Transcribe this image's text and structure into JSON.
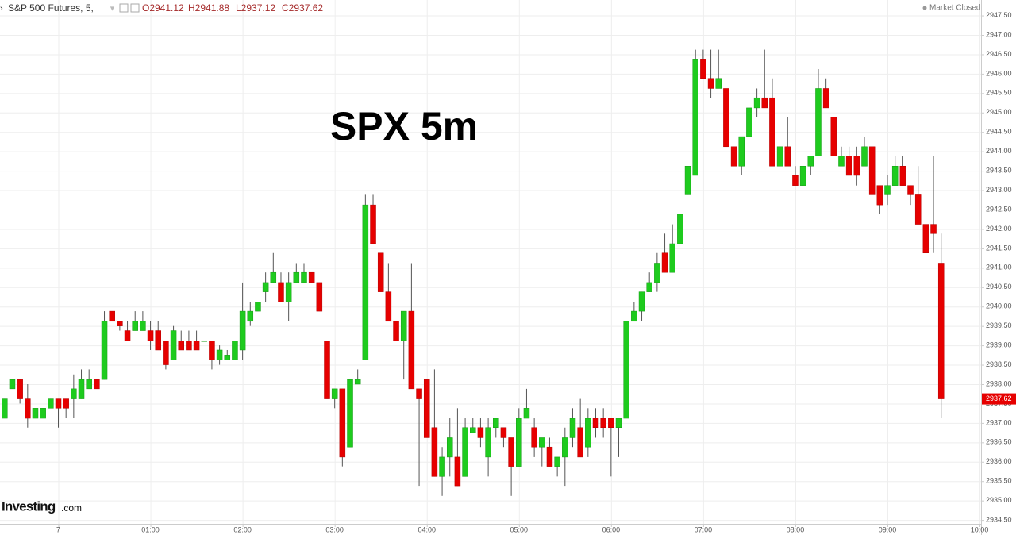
{
  "header": {
    "instrument": "S&P 500 Futures, 5,",
    "ohlc": [
      "O2941.12",
      "H2941.88",
      "L2937.12",
      "C2937.62"
    ],
    "status": "Market Closed"
  },
  "logo": {
    "brand": "Investing",
    "suffix": ".com"
  },
  "chart_data": {
    "type": "candlestick",
    "annotation": "SPX 5m",
    "up_color": "#1ecb1e",
    "down_color": "#e60000",
    "grid": true,
    "x": [
      -35,
      -30,
      -25,
      -20,
      -15,
      -10,
      -5,
      0,
      5,
      10,
      15,
      20,
      25,
      30,
      35,
      40,
      45,
      50,
      55,
      60,
      65,
      70,
      75,
      80,
      85,
      90,
      95,
      100,
      105,
      110,
      115,
      120,
      125,
      130,
      135,
      140,
      145,
      150,
      155,
      160,
      165,
      170,
      175,
      180,
      185,
      190,
      195,
      200,
      205,
      210,
      215,
      220,
      225,
      230,
      235,
      240,
      245,
      250,
      255,
      260,
      265,
      270,
      275,
      280,
      285,
      290,
      295,
      300,
      305,
      310,
      315,
      320,
      325,
      330,
      335,
      340,
      345,
      350,
      355,
      360,
      365,
      370,
      375,
      380,
      385,
      390,
      395,
      400,
      405,
      410,
      415,
      420,
      425,
      430,
      435,
      440,
      445,
      450,
      455,
      460,
      465,
      470,
      475,
      480,
      485,
      490,
      495,
      500,
      505,
      510,
      515,
      520,
      525,
      530,
      535,
      540,
      545,
      550,
      555,
      560,
      565,
      570,
      575
    ],
    "open": [
      2937.12,
      2937.88,
      2938.12,
      2937.62,
      2937.12,
      2937.12,
      2937.38,
      2937.62,
      2937.62,
      2937.62,
      2937.62,
      2937.88,
      2938.12,
      2938.12,
      2939.88,
      2939.62,
      2939.38,
      2939.38,
      2939.38,
      2939.38,
      2939.38,
      2939.12,
      2938.62,
      2939.12,
      2939.12,
      2939.12,
      2939.12,
      2939.12,
      2938.62,
      2938.62,
      2938.62,
      2938.88,
      2939.62,
      2939.88,
      2940.38,
      2940.62,
      2940.62,
      2940.12,
      2940.62,
      2940.62,
      2940.88,
      2940.62,
      2939.12,
      2937.62,
      2937.88,
      2936.38,
      2938.0,
      2938.62,
      2942.62,
      2941.38,
      2940.38,
      2939.62,
      2939.12,
      2939.88,
      2937.88,
      2938.12,
      2936.88,
      2935.62,
      2936.12,
      2936.12,
      2935.62,
      2936.75,
      2936.88,
      2936.12,
      2936.88,
      2936.88,
      2936.62,
      2935.88,
      2937.12,
      2936.88,
      2936.38,
      2936.38,
      2935.88,
      2936.12,
      2936.62,
      2936.88,
      2936.38,
      2937.12,
      2937.12,
      2937.12,
      2936.88,
      2937.12,
      2939.62,
      2939.88,
      2940.38,
      2940.62,
      2941.38,
      2940.88,
      2941.62,
      2942.88,
      2943.38,
      2946.38,
      2945.88,
      2945.62,
      2945.62,
      2944.12,
      2943.62,
      2944.38,
      2945.12,
      2945.38,
      2945.38,
      2943.62,
      2944.12,
      2943.38,
      2943.12,
      2943.62,
      2943.88,
      2945.62,
      2944.88,
      2943.62,
      2943.88,
      2943.88,
      2943.62,
      2944.12,
      2943.12,
      2942.88,
      2943.12,
      2943.62,
      2943.12,
      2942.88,
      2942.12,
      2942.12,
      2941.12
    ],
    "high": [
      2937.62,
      2938.12,
      2938.12,
      2938.0,
      2937.38,
      2937.38,
      2937.62,
      2937.62,
      2937.62,
      2938.25,
      2938.38,
      2938.38,
      2938.12,
      2939.88,
      2939.88,
      2939.62,
      2939.62,
      2939.88,
      2939.88,
      2939.62,
      2939.62,
      2939.12,
      2939.5,
      2939.38,
      2939.38,
      2939.38,
      2939.12,
      2939.12,
      2939.0,
      2938.88,
      2939.12,
      2940.62,
      2940.12,
      2940.12,
      2940.88,
      2941.38,
      2940.88,
      2940.88,
      2941.12,
      2941.12,
      2940.88,
      2940.62,
      2939.12,
      2937.88,
      2937.88,
      2938.12,
      2938.38,
      2942.88,
      2942.88,
      2941.38,
      2941.12,
      2939.62,
      2939.88,
      2941.12,
      2937.88,
      2938.12,
      2938.38,
      2936.38,
      2937.12,
      2937.38,
      2937.12,
      2937.12,
      2937.12,
      2937.12,
      2937.12,
      2936.88,
      2936.62,
      2937.38,
      2937.88,
      2937.12,
      2936.62,
      2936.62,
      2936.12,
      2936.88,
      2937.38,
      2937.62,
      2937.38,
      2937.38,
      2937.38,
      2937.12,
      2937.12,
      2939.62,
      2940.12,
      2940.38,
      2940.88,
      2941.38,
      2941.88,
      2942.12,
      2942.38,
      2943.62,
      2946.62,
      2946.62,
      2946.62,
      2946.62,
      2945.62,
      2944.12,
      2944.38,
      2945.12,
      2945.62,
      2946.62,
      2945.88,
      2944.12,
      2944.88,
      2943.62,
      2943.62,
      2943.88,
      2946.12,
      2945.88,
      2944.88,
      2944.12,
      2944.12,
      2944.12,
      2944.38,
      2944.12,
      2943.12,
      2943.38,
      2943.88,
      2943.88,
      2943.12,
      2943.62,
      2942.12,
      2943.88,
      2941.88
    ],
    "low": [
      2937.12,
      2937.88,
      2937.5,
      2936.88,
      2937.12,
      2937.12,
      2937.38,
      2936.88,
      2937.12,
      2937.12,
      2937.62,
      2937.88,
      2937.88,
      2938.12,
      2939.62,
      2939.38,
      2939.12,
      2939.38,
      2939.38,
      2938.88,
      2938.88,
      2938.38,
      2938.62,
      2938.88,
      2938.88,
      2938.88,
      2939.12,
      2938.38,
      2938.5,
      2938.62,
      2938.62,
      2938.62,
      2939.5,
      2939.88,
      2940.12,
      2940.62,
      2940.12,
      2939.62,
      2940.62,
      2940.62,
      2940.62,
      2939.88,
      2937.62,
      2937.38,
      2935.88,
      2936.38,
      2938.0,
      2938.62,
      2941.62,
      2940.38,
      2939.62,
      2939.12,
      2938.12,
      2937.88,
      2935.38,
      2936.62,
      2935.62,
      2935.12,
      2935.62,
      2935.38,
      2935.62,
      2936.75,
      2936.38,
      2935.62,
      2936.62,
      2936.38,
      2935.12,
      2935.88,
      2937.12,
      2936.12,
      2935.88,
      2935.88,
      2935.62,
      2935.38,
      2936.38,
      2936.12,
      2936.12,
      2936.62,
      2936.62,
      2935.62,
      2936.12,
      2937.12,
      2939.62,
      2939.62,
      2940.38,
      2940.38,
      2940.88,
      2940.88,
      2941.62,
      2942.88,
      2943.38,
      2945.88,
      2945.38,
      2945.62,
      2944.12,
      2943.62,
      2943.38,
      2944.38,
      2944.88,
      2945.12,
      2943.62,
      2943.62,
      2943.62,
      2943.12,
      2943.12,
      2943.38,
      2943.88,
      2945.12,
      2943.88,
      2943.62,
      2943.38,
      2943.12,
      2943.62,
      2942.88,
      2942.38,
      2942.62,
      2943.12,
      2943.12,
      2942.62,
      2942.12,
      2941.38,
      2941.38,
      2937.12
    ],
    "close": [
      2937.62,
      2938.12,
      2937.62,
      2937.12,
      2937.38,
      2937.38,
      2937.62,
      2937.38,
      2937.38,
      2937.88,
      2938.12,
      2938.12,
      2937.88,
      2939.62,
      2939.62,
      2939.5,
      2939.12,
      2939.62,
      2939.62,
      2939.12,
      2938.88,
      2938.5,
      2939.38,
      2938.88,
      2938.88,
      2938.88,
      2939.12,
      2938.62,
      2938.88,
      2938.75,
      2939.12,
      2939.88,
      2939.88,
      2940.12,
      2940.62,
      2940.88,
      2940.12,
      2940.62,
      2940.88,
      2940.88,
      2940.62,
      2939.88,
      2937.62,
      2937.88,
      2936.12,
      2938.12,
      2938.12,
      2942.62,
      2941.62,
      2940.38,
      2939.62,
      2939.12,
      2939.88,
      2937.88,
      2937.62,
      2936.62,
      2935.62,
      2936.12,
      2936.62,
      2935.38,
      2936.88,
      2936.88,
      2936.62,
      2936.88,
      2937.12,
      2936.62,
      2935.88,
      2937.12,
      2937.38,
      2936.38,
      2936.62,
      2935.88,
      2936.12,
      2936.62,
      2937.12,
      2936.12,
      2937.12,
      2936.88,
      2936.88,
      2936.88,
      2937.12,
      2939.62,
      2939.88,
      2940.38,
      2940.62,
      2941.12,
      2940.88,
      2941.62,
      2942.38,
      2943.62,
      2946.38,
      2945.88,
      2945.62,
      2945.88,
      2944.12,
      2943.62,
      2944.38,
      2945.12,
      2945.38,
      2945.12,
      2943.62,
      2944.12,
      2943.62,
      2943.12,
      2943.62,
      2943.88,
      2945.62,
      2945.12,
      2943.88,
      2943.88,
      2943.38,
      2943.38,
      2944.12,
      2942.88,
      2942.62,
      2943.12,
      2943.62,
      2943.12,
      2942.88,
      2942.12,
      2941.38,
      2941.88,
      2937.62
    ],
    "xlim": [
      -38,
      601
    ],
    "xticks": [
      {
        "value": 0,
        "label": "7"
      },
      {
        "value": 60,
        "label": "01:00"
      },
      {
        "value": 120,
        "label": "02:00"
      },
      {
        "value": 180,
        "label": "03:00"
      },
      {
        "value": 240,
        "label": "04:00"
      },
      {
        "value": 300,
        "label": "05:00"
      },
      {
        "value": 360,
        "label": "06:00"
      },
      {
        "value": 420,
        "label": "07:00"
      },
      {
        "value": 480,
        "label": "08:00"
      },
      {
        "value": 540,
        "label": "09:00"
      },
      {
        "value": 600,
        "label": "10:00"
      }
    ],
    "ylim": [
      2934.4,
      2947.9
    ],
    "yticks": [
      {
        "value": 2934.5,
        "label": "2934.50"
      },
      {
        "value": 2935,
        "label": "2935.00"
      },
      {
        "value": 2935.5,
        "label": "2935.50"
      },
      {
        "value": 2936,
        "label": "2936.00"
      },
      {
        "value": 2936.5,
        "label": "2936.50"
      },
      {
        "value": 2937,
        "label": "2937.00"
      },
      {
        "value": 2937.5,
        "label": "2937.50"
      },
      {
        "value": 2938,
        "label": "2938.00"
      },
      {
        "value": 2938.5,
        "label": "2938.50"
      },
      {
        "value": 2939,
        "label": "2939.00"
      },
      {
        "value": 2939.5,
        "label": "2939.50"
      },
      {
        "value": 2940,
        "label": "2940.00"
      },
      {
        "value": 2940.5,
        "label": "2940.50"
      },
      {
        "value": 2941,
        "label": "2941.00"
      },
      {
        "value": 2941.5,
        "label": "2941.50"
      },
      {
        "value": 2942,
        "label": "2942.00"
      },
      {
        "value": 2942.5,
        "label": "2942.50"
      },
      {
        "value": 2943,
        "label": "2943.00"
      },
      {
        "value": 2943.5,
        "label": "2943.50"
      },
      {
        "value": 2944,
        "label": "2944.00"
      },
      {
        "value": 2944.5,
        "label": "2944.50"
      },
      {
        "value": 2945,
        "label": "2945.00"
      },
      {
        "value": 2945.5,
        "label": "2945.50"
      },
      {
        "value": 2946,
        "label": "2946.00"
      },
      {
        "value": 2946.5,
        "label": "2946.50"
      },
      {
        "value": 2947,
        "label": "2947.00"
      },
      {
        "value": 2947.5,
        "label": "2947.50"
      }
    ]
  }
}
